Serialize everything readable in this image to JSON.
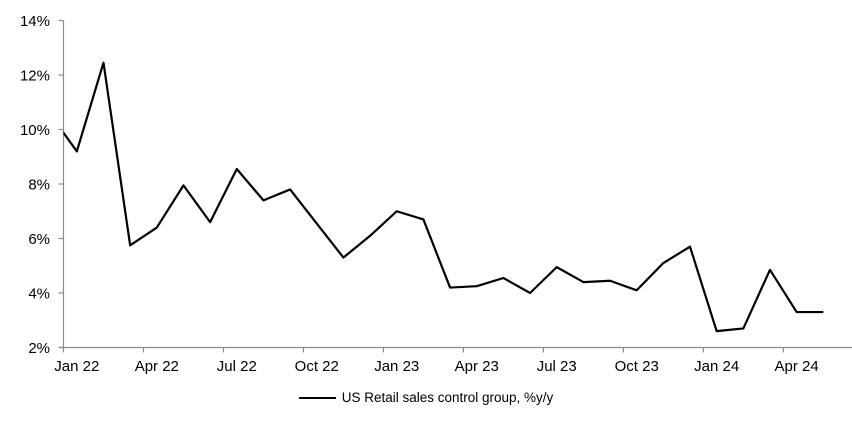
{
  "chart_data": {
    "type": "line",
    "title": "",
    "xlabel": "",
    "ylabel": "",
    "series_name": "US Retail sales control group, %y/y",
    "legend_position": "bottom-center",
    "grid": false,
    "background": "#ffffff",
    "line_color": "#000000",
    "axis_color": "#8c8c8c",
    "text_color": "#000000",
    "ylim": [
      2,
      14
    ],
    "y_tick_step": 2,
    "y_tick_labels": [
      "2%",
      "4%",
      "6%",
      "8%",
      "10%",
      "12%",
      "14%"
    ],
    "x_tick_labels": [
      "Jan 22",
      "Apr 22",
      "Jul 22",
      "Oct 22",
      "Jan 23",
      "Apr 23",
      "Jul 23",
      "Oct 23",
      "Jan 24",
      "Apr 24"
    ],
    "categories": [
      "Jan 22",
      "Feb 22",
      "Mar 22",
      "Apr 22",
      "May 22",
      "Jun 22",
      "Jul 22",
      "Aug 22",
      "Sep 22",
      "Oct 22",
      "Nov 22",
      "Dec 22",
      "Jan 23",
      "Feb 23",
      "Mar 23",
      "Apr 23",
      "May 23",
      "Jun 23",
      "Jul 23",
      "Aug 23",
      "Sep 23",
      "Oct 23",
      "Nov 23",
      "Dec 23",
      "Jan 24",
      "Feb 24",
      "Mar 24",
      "Apr 24",
      "May 24"
    ],
    "values": [
      9.2,
      12.45,
      5.75,
      6.4,
      7.95,
      6.6,
      8.55,
      7.4,
      7.8,
      6.55,
      5.3,
      6.1,
      7.0,
      6.7,
      4.2,
      4.25,
      4.55,
      4.0,
      4.95,
      4.4,
      4.45,
      4.1,
      5.1,
      5.7,
      2.6,
      2.7,
      4.85,
      3.3,
      3.3
    ],
    "lead_in": {
      "category": "Dec 21",
      "value": 10.55,
      "note": "line enters plot clipped at left axis at ~9.9%"
    }
  }
}
